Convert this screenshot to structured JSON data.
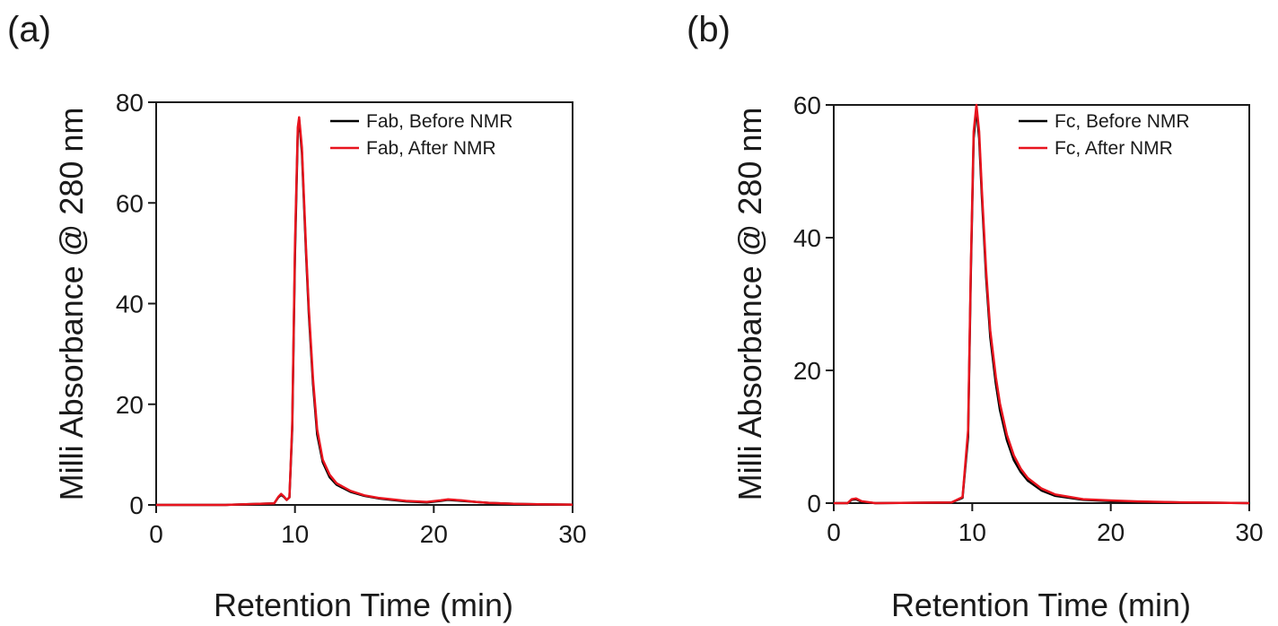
{
  "chart_data": [
    {
      "type": "line",
      "panel_label": "(a)",
      "xlabel": "Retention Time (min)",
      "ylabel": "Milli Absorbance @ 280 nm",
      "xlim": [
        0,
        30
      ],
      "ylim": [
        0,
        80
      ],
      "xticks": [
        0,
        10,
        20,
        30
      ],
      "yticks": [
        0,
        20,
        40,
        60,
        80
      ],
      "grid": false,
      "legend_position": "top-right",
      "series": [
        {
          "name": "Fab, Before NMR",
          "color": "#000000",
          "x": [
            0,
            5,
            8.5,
            8.8,
            9.0,
            9.2,
            9.4,
            9.6,
            9.8,
            10.0,
            10.2,
            10.3,
            10.5,
            10.8,
            11.0,
            11.3,
            11.6,
            12.0,
            12.5,
            13.0,
            14.0,
            15.0,
            16.0,
            18.0,
            19.5,
            20.5,
            21.0,
            22.0,
            23.0,
            24.0,
            26.0,
            28.0,
            30.0
          ],
          "y": [
            0,
            0,
            0.3,
            1.5,
            2.0,
            1.6,
            1.0,
            1.5,
            15,
            50,
            74,
            76.5,
            70,
            50,
            38,
            24,
            14,
            8.5,
            5.5,
            4.0,
            2.6,
            1.8,
            1.3,
            0.7,
            0.5,
            0.8,
            1.0,
            0.8,
            0.6,
            0.4,
            0.2,
            0.1,
            0.05
          ]
        },
        {
          "name": "Fab, After NMR",
          "color": "#e8141e",
          "x": [
            0,
            5,
            8.5,
            8.8,
            9.0,
            9.2,
            9.4,
            9.6,
            9.8,
            10.0,
            10.2,
            10.3,
            10.5,
            10.8,
            11.0,
            11.3,
            11.6,
            12.0,
            12.5,
            13.0,
            14.0,
            15.0,
            16.0,
            18.0,
            19.5,
            20.5,
            21.0,
            22.0,
            23.0,
            24.0,
            26.0,
            28.0,
            30.0
          ],
          "y": [
            0,
            0,
            0.3,
            1.6,
            2.2,
            1.7,
            1.0,
            1.5,
            16,
            52,
            75,
            77,
            71,
            51,
            39,
            25,
            15,
            9,
            6,
            4.3,
            2.8,
            1.9,
            1.4,
            0.8,
            0.6,
            0.9,
            1.1,
            0.9,
            0.6,
            0.4,
            0.2,
            0.1,
            0.05
          ]
        }
      ]
    },
    {
      "type": "line",
      "panel_label": "(b)",
      "xlabel": "Retention Time (min)",
      "ylabel": "Milli Absorbance @ 280 nm",
      "xlim": [
        0,
        30
      ],
      "ylim": [
        0,
        60
      ],
      "xticks": [
        0,
        10,
        20,
        30
      ],
      "yticks": [
        0,
        20,
        40,
        60
      ],
      "grid": false,
      "legend_position": "top-right",
      "series": [
        {
          "name": "Fc, Before NMR",
          "color": "#000000",
          "x": [
            0,
            1.0,
            1.3,
            1.6,
            2.0,
            3.0,
            8.5,
            9.3,
            9.7,
            9.9,
            10.1,
            10.3,
            10.5,
            10.7,
            11.0,
            11.3,
            11.7,
            12.0,
            12.5,
            13.0,
            13.5,
            14.0,
            15.0,
            16.0,
            18.0,
            20.0,
            22.0,
            25.0,
            28.0,
            30.0
          ],
          "y": [
            0,
            0,
            0.5,
            0.6,
            0.2,
            0,
            0.1,
            0.8,
            10,
            35,
            55,
            59.5,
            55,
            46,
            34,
            25,
            18,
            14,
            9.5,
            6.5,
            4.7,
            3.4,
            1.9,
            1.1,
            0.5,
            0.3,
            0.2,
            0.1,
            0.05,
            0
          ]
        },
        {
          "name": "Fc, After NMR",
          "color": "#e8141e",
          "x": [
            0,
            1.0,
            1.3,
            1.6,
            2.0,
            3.0,
            8.5,
            9.3,
            9.7,
            9.9,
            10.1,
            10.3,
            10.5,
            10.7,
            11.0,
            11.3,
            11.7,
            12.0,
            12.5,
            13.0,
            13.5,
            14.0,
            15.0,
            16.0,
            18.0,
            20.0,
            22.0,
            25.0,
            28.0,
            30.0
          ],
          "y": [
            0,
            0,
            0.6,
            0.7,
            0.3,
            0,
            0.1,
            0.9,
            11,
            36,
            56,
            60,
            56,
            47,
            35,
            26,
            19,
            15,
            10.3,
            7.2,
            5.2,
            3.8,
            2.2,
            1.3,
            0.6,
            0.4,
            0.25,
            0.12,
            0.06,
            0
          ]
        }
      ]
    }
  ]
}
